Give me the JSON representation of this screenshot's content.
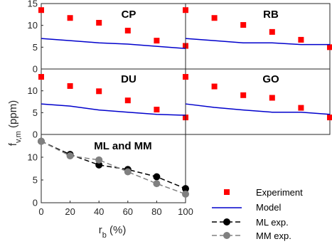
{
  "figure": {
    "ylabel_main": "f",
    "ylabel_sub": "v,m",
    "ylabel_unit": " (ppm)",
    "xlabel_main": "r",
    "xlabel_sub": "b",
    "xlabel_unit": " (%)"
  },
  "colors": {
    "experiment": "#ff0000",
    "model": "#0000cc",
    "ml": "#000000",
    "mm": "#808080"
  },
  "legend": {
    "experiment": "Experiment",
    "model": "Model",
    "ml": "ML exp.",
    "mm": "MM exp."
  },
  "chart_data": [
    {
      "type": "scatter",
      "title": "CP",
      "x": [
        0,
        20,
        40,
        60,
        80,
        100
      ],
      "series": [
        {
          "name": "Experiment",
          "kind": "markers",
          "values": [
            13.5,
            11.7,
            10.6,
            8.8,
            6.5,
            5.3
          ]
        },
        {
          "name": "Model",
          "kind": "line",
          "values": [
            7.0,
            6.5,
            6.0,
            5.7,
            5.2,
            4.7
          ]
        }
      ],
      "xlim": [
        0,
        100
      ],
      "ylim": [
        0,
        15
      ],
      "yticks": [
        0,
        5,
        10,
        15
      ]
    },
    {
      "type": "scatter",
      "title": "RB",
      "x": [
        0,
        20,
        40,
        60,
        80,
        100
      ],
      "series": [
        {
          "name": "Experiment",
          "kind": "markers",
          "values": [
            13.5,
            11.7,
            10.1,
            8.5,
            6.7,
            5.0
          ]
        },
        {
          "name": "Model",
          "kind": "line",
          "values": [
            7.0,
            6.5,
            6.0,
            6.0,
            5.6,
            5.6
          ]
        }
      ],
      "xlim": [
        0,
        100
      ],
      "ylim": [
        0,
        15
      ]
    },
    {
      "type": "scatter",
      "title": "DU",
      "x": [
        0,
        20,
        40,
        60,
        80,
        100
      ],
      "series": [
        {
          "name": "Experiment",
          "kind": "markers",
          "values": [
            13.2,
            11.1,
            9.9,
            7.8,
            5.7,
            3.9
          ]
        },
        {
          "name": "Model",
          "kind": "line",
          "values": [
            7.0,
            6.5,
            5.6,
            5.1,
            4.6,
            4.4
          ]
        }
      ],
      "xlim": [
        0,
        100
      ],
      "ylim": [
        0,
        15
      ],
      "yticks": [
        0,
        5,
        10
      ]
    },
    {
      "type": "scatter",
      "title": "GO",
      "x": [
        0,
        20,
        40,
        60,
        80,
        100
      ],
      "series": [
        {
          "name": "Experiment",
          "kind": "markers",
          "values": [
            13.2,
            11.0,
            9.0,
            8.4,
            6.1,
            3.9
          ]
        },
        {
          "name": "Model",
          "kind": "line",
          "values": [
            7.0,
            6.2,
            5.6,
            5.1,
            5.1,
            4.6
          ]
        }
      ],
      "xlim": [
        0,
        100
      ],
      "ylim": [
        0,
        15
      ]
    },
    {
      "type": "line",
      "title": "ML and MM",
      "x": [
        0,
        20,
        40,
        60,
        80,
        100
      ],
      "series": [
        {
          "name": "ML exp.",
          "values": [
            13.5,
            10.6,
            8.3,
            7.3,
            5.7,
            3.1
          ]
        },
        {
          "name": "MM exp.",
          "values": [
            13.5,
            10.3,
            9.4,
            6.8,
            4.2,
            1.9
          ]
        }
      ],
      "xlim": [
        0,
        100
      ],
      "ylim": [
        0,
        15
      ],
      "xticks": [
        0,
        20,
        40,
        60,
        80,
        100
      ],
      "yticks": [
        0,
        5,
        10
      ]
    }
  ]
}
